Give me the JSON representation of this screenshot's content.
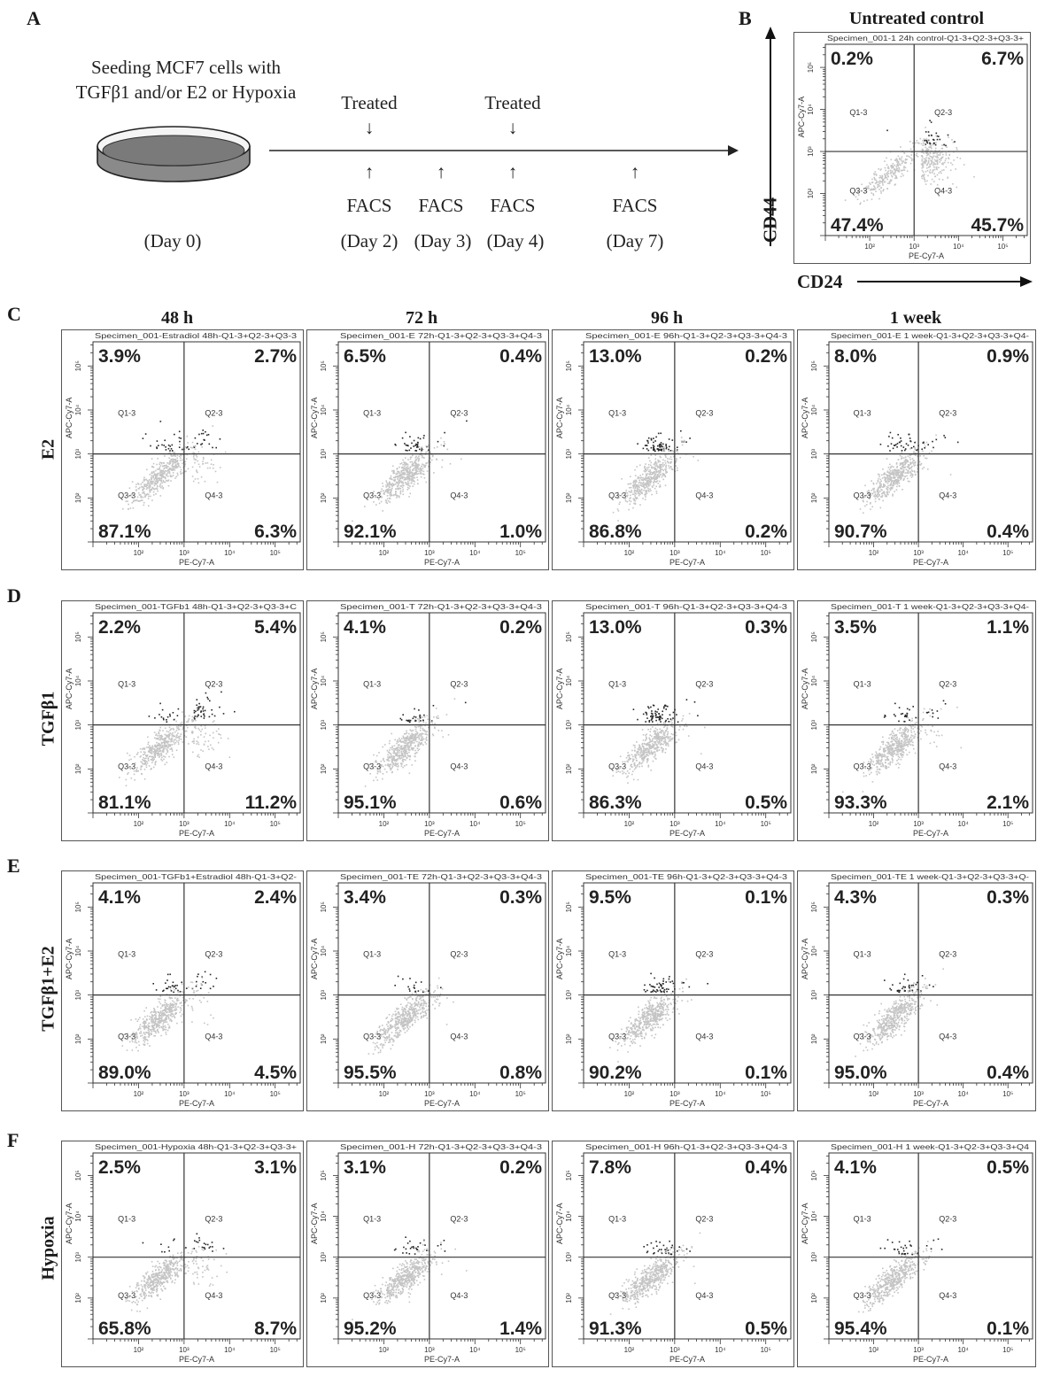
{
  "panel_a": {
    "letter": "A",
    "seeding_line1": "Seeding MCF7 cells with",
    "seeding_line2": "TGFβ1 and/or E2 or Hypoxia",
    "treated_1": "Treated",
    "treated_2": "Treated",
    "facs_1": "FACS",
    "facs_2": "FACS",
    "facs_3": "FACS",
    "facs_4": "FACS",
    "day_0": "(Day 0)",
    "day_2": "(Day 2)",
    "day_3": "(Day 3)",
    "day_4": "(Day 4)",
    "day_7": "(Day 7)",
    "arrow_down": "↓",
    "arrow_up": "↑"
  },
  "panel_b": {
    "letter": "B",
    "title": "Untreated control",
    "y_axis": "CD44",
    "x_axis": "CD24"
  },
  "panel_letters": [
    "C",
    "D",
    "E",
    "F"
  ],
  "column_titles": [
    "48 h",
    "72 h",
    "96 h",
    "1 week"
  ],
  "row_labels": [
    "E2",
    "TGFβ1",
    "TGFβ1+E2",
    "Hypoxia"
  ],
  "chart_data": [
    {
      "type": "scatter",
      "panel": "B",
      "header": "Specimen_001-1 24h control-Q1-3+Q2-3+Q3-3+",
      "xlabel": "PE-Cy7-A",
      "ylabel": "APC-Cy7-A",
      "gates": [
        "Q1-3",
        "Q2-3",
        "Q3-3",
        "Q4-3"
      ],
      "quadrants": {
        "Q1": "0.2%",
        "Q2": "6.7%",
        "Q3": "47.4%",
        "Q4": "45.7%"
      },
      "x_scale": "log",
      "y_scale": "log"
    },
    {
      "type": "scatter",
      "panel": "C",
      "row": "E2",
      "time": "48 h",
      "header": "Specimen_001-Estradiol 48h-Q1-3+Q2-3+Q3-3",
      "xlabel": "PE-Cy7-A",
      "ylabel": "APC-Cy7-A",
      "gates": [
        "Q1-3",
        "Q2-3",
        "Q3-3",
        "Q4-3"
      ],
      "quadrants": {
        "Q1": "3.9%",
        "Q2": "2.7%",
        "Q3": "87.1%",
        "Q4": "6.3%"
      }
    },
    {
      "type": "scatter",
      "panel": "C",
      "row": "E2",
      "time": "72 h",
      "header": "Specimen_001-E 72h-Q1-3+Q2-3+Q3-3+Q4-3",
      "xlabel": "PE-Cy7-A",
      "ylabel": "APC-Cy7-A",
      "gates": [
        "Q1-3",
        "Q2-3",
        "Q3-3",
        "Q4-3"
      ],
      "quadrants": {
        "Q1": "6.5%",
        "Q2": "0.4%",
        "Q3": "92.1%",
        "Q4": "1.0%"
      }
    },
    {
      "type": "scatter",
      "panel": "C",
      "row": "E2",
      "time": "96 h",
      "header": "Specimen_001-E 96h-Q1-3+Q2-3+Q3-3+Q4-3",
      "xlabel": "PE-Cy7-A",
      "ylabel": "APC-Cy7-A",
      "gates": [
        "Q1-3",
        "Q2-3",
        "Q3-3",
        "Q4-3"
      ],
      "quadrants": {
        "Q1": "13.0%",
        "Q2": "0.2%",
        "Q3": "86.8%",
        "Q4": "0.2%"
      }
    },
    {
      "type": "scatter",
      "panel": "C",
      "row": "E2",
      "time": "1 week",
      "header": "Specimen_001-E 1 week-Q1-3+Q2-3+Q3-3+Q4-",
      "xlabel": "PE-Cy7-A",
      "ylabel": "APC-Cy7-A",
      "gates": [
        "Q1-3",
        "Q2-3",
        "Q3-3",
        "Q4-3"
      ],
      "quadrants": {
        "Q1": "8.0%",
        "Q2": "0.9%",
        "Q3": "90.7%",
        "Q4": "0.4%"
      }
    },
    {
      "type": "scatter",
      "panel": "D",
      "row": "TGFβ1",
      "time": "48 h",
      "header": "Specimen_001-TGFb1 48h-Q1-3+Q2-3+Q3-3+C",
      "xlabel": "PE-Cy7-A",
      "ylabel": "APC-Cy7-A",
      "gates": [
        "Q1-3",
        "Q2-3",
        "Q3-3",
        "Q4-3"
      ],
      "quadrants": {
        "Q1": "2.2%",
        "Q2": "5.4%",
        "Q3": "81.1%",
        "Q4": "11.2%"
      }
    },
    {
      "type": "scatter",
      "panel": "D",
      "row": "TGFβ1",
      "time": "72 h",
      "header": "Specimen_001-T 72h-Q1-3+Q2-3+Q3-3+Q4-3",
      "xlabel": "PE-Cy7-A",
      "ylabel": "APC-Cy7-A",
      "gates": [
        "Q1-3",
        "Q2-3",
        "Q3-3",
        "Q4-3"
      ],
      "quadrants": {
        "Q1": "4.1%",
        "Q2": "0.2%",
        "Q3": "95.1%",
        "Q4": "0.6%"
      }
    },
    {
      "type": "scatter",
      "panel": "D",
      "row": "TGFβ1",
      "time": "96 h",
      "header": "Specimen_001-T 96h-Q1-3+Q2-3+Q3-3+Q4-3",
      "xlabel": "PE-Cy7-A",
      "ylabel": "APC-Cy7-A",
      "gates": [
        "Q1-3",
        "Q2-3",
        "Q3-3",
        "Q4-3"
      ],
      "quadrants": {
        "Q1": "13.0%",
        "Q2": "0.3%",
        "Q3": "86.3%",
        "Q4": "0.5%"
      }
    },
    {
      "type": "scatter",
      "panel": "D",
      "row": "TGFβ1",
      "time": "1 week",
      "header": "Specimen_001-T 1 week-Q1-3+Q2-3+Q3-3+Q4-",
      "xlabel": "PE-Cy7-A",
      "ylabel": "APC-Cy7-A",
      "gates": [
        "Q1-3",
        "Q2-3",
        "Q3-3",
        "Q4-3"
      ],
      "quadrants": {
        "Q1": "3.5%",
        "Q2": "1.1%",
        "Q3": "93.3%",
        "Q4": "2.1%"
      }
    },
    {
      "type": "scatter",
      "panel": "E",
      "row": "TGFβ1+E2",
      "time": "48 h",
      "header": "Specimen_001-TGFb1+Estradiol 48h-Q1-3+Q2-",
      "xlabel": "PE-Cy7-A",
      "ylabel": "APC-Cy7-A",
      "gates": [
        "Q1-3",
        "Q2-3",
        "Q3-3",
        "Q4-3"
      ],
      "quadrants": {
        "Q1": "4.1%",
        "Q2": "2.4%",
        "Q3": "89.0%",
        "Q4": "4.5%"
      }
    },
    {
      "type": "scatter",
      "panel": "E",
      "row": "TGFβ1+E2",
      "time": "72 h",
      "header": "Specimen_001-TE 72h-Q1-3+Q2-3+Q3-3+Q4-3",
      "xlabel": "PE-Cy7-A",
      "ylabel": "APC-Cy7-A",
      "gates": [
        "Q1-3",
        "Q2-3",
        "Q3-3",
        "Q4-3"
      ],
      "quadrants": {
        "Q1": "3.4%",
        "Q2": "0.3%",
        "Q3": "95.5%",
        "Q4": "0.8%"
      }
    },
    {
      "type": "scatter",
      "panel": "E",
      "row": "TGFβ1+E2",
      "time": "96 h",
      "header": "Specimen_001-TE 96h-Q1-3+Q2-3+Q3-3+Q4-3",
      "xlabel": "PE-Cy7-A",
      "ylabel": "APC-Cy7-A",
      "gates": [
        "Q1-3",
        "Q2-3",
        "Q3-3",
        "Q4-3"
      ],
      "quadrants": {
        "Q1": "9.5%",
        "Q2": "0.1%",
        "Q3": "90.2%",
        "Q4": "0.1%"
      }
    },
    {
      "type": "scatter",
      "panel": "E",
      "row": "TGFβ1+E2",
      "time": "1 week",
      "header": "Specimen_001-TE 1 week-Q1-3+Q2-3+Q3-3+Q-",
      "xlabel": "PE-Cy7-A",
      "ylabel": "APC-Cy7-A",
      "gates": [
        "Q1-3",
        "Q2-3",
        "Q3-3",
        "Q4-3"
      ],
      "quadrants": {
        "Q1": "4.3%",
        "Q2": "0.3%",
        "Q3": "95.0%",
        "Q4": "0.4%"
      }
    },
    {
      "type": "scatter",
      "panel": "F",
      "row": "Hypoxia",
      "time": "48 h",
      "header": "Specimen_001-Hypoxia 48h-Q1-3+Q2-3+Q3-3+",
      "xlabel": "PE-Cy7-A",
      "ylabel": "APC-Cy7-A",
      "gates": [
        "Q1-3",
        "Q2-3",
        "Q3-3",
        "Q4-3"
      ],
      "quadrants": {
        "Q1": "2.5%",
        "Q2": "3.1%",
        "Q3": "65.8%",
        "Q4": "8.7%"
      }
    },
    {
      "type": "scatter",
      "panel": "F",
      "row": "Hypoxia",
      "time": "72 h",
      "header": "Specimen_001-H 72h-Q1-3+Q2-3+Q3-3+Q4-3",
      "xlabel": "PE-Cy7-A",
      "ylabel": "APC-Cy7-A",
      "gates": [
        "Q1-3",
        "Q2-3",
        "Q3-3",
        "Q4-3"
      ],
      "quadrants": {
        "Q1": "3.1%",
        "Q2": "0.2%",
        "Q3": "95.2%",
        "Q4": "1.4%"
      }
    },
    {
      "type": "scatter",
      "panel": "F",
      "row": "Hypoxia",
      "time": "96 h",
      "header": "Specimen_001-H 96h-Q1-3+Q2-3+Q3-3+Q4-3",
      "xlabel": "PE-Cy7-A",
      "ylabel": "APC-Cy7-A",
      "gates": [
        "Q1-3",
        "Q2-3",
        "Q3-3",
        "Q4-3"
      ],
      "quadrants": {
        "Q1": "7.8%",
        "Q2": "0.4%",
        "Q3": "91.3%",
        "Q4": "0.5%"
      }
    },
    {
      "type": "scatter",
      "panel": "F",
      "row": "Hypoxia",
      "time": "1 week",
      "header": "Specimen_001-H 1 week-Q1-3+Q2-3+Q3-3+Q4",
      "xlabel": "PE-Cy7-A",
      "ylabel": "APC-Cy7-A",
      "gates": [
        "Q1-3",
        "Q2-3",
        "Q3-3",
        "Q4-3"
      ],
      "quadrants": {
        "Q1": "4.1%",
        "Q2": "0.5%",
        "Q3": "95.4%",
        "Q4": "0.1%"
      }
    }
  ],
  "tick_labels": {
    "x": [
      "10²",
      "10³",
      "10⁴",
      "10⁵"
    ],
    "y": [
      "10²",
      "10³",
      "10⁴",
      "10⁵"
    ]
  },
  "colors": {
    "dots_light": "#c4c4c4",
    "dots_dark": "#262626",
    "frame": "#555555",
    "gate_line": "#333333"
  }
}
